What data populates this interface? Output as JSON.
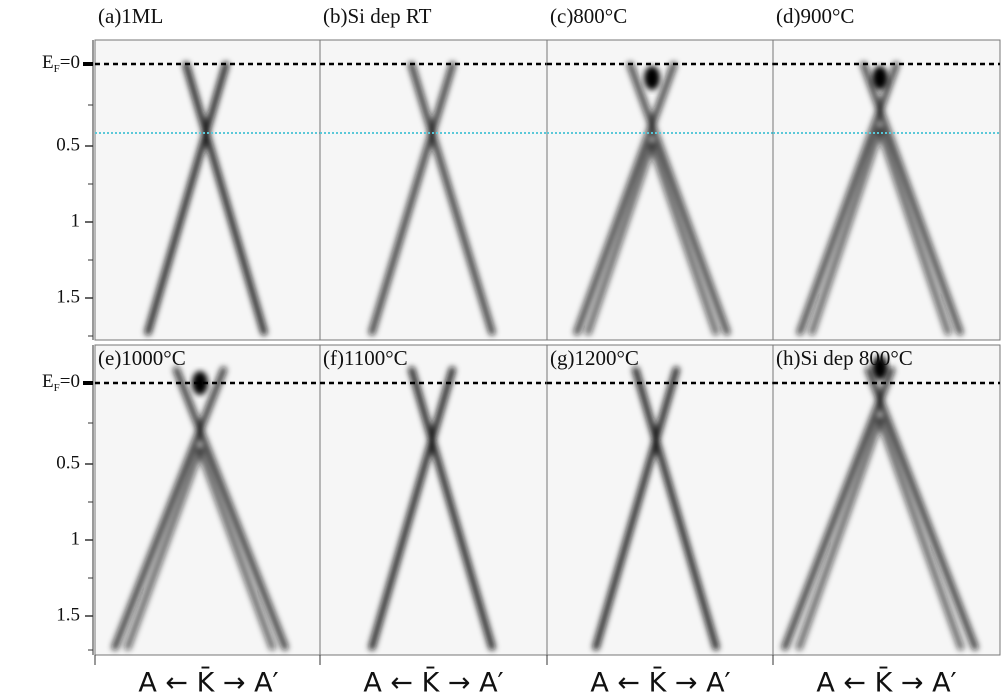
{
  "figure": {
    "panels": [
      {
        "label": "(a)1ML"
      },
      {
        "label": "(b)Si dep RT"
      },
      {
        "label": "(c)800°C"
      },
      {
        "label": "(d)900°C"
      },
      {
        "label": "(e)1000°C"
      },
      {
        "label": "(f)1100°C"
      },
      {
        "label": "(g)1200°C"
      },
      {
        "label": "(h)Si dep 800°C"
      }
    ],
    "y_axis": {
      "fermi_symbol": "E",
      "fermi_subscript": "F",
      "fermi_value": "=0",
      "ticks": [
        "0.5",
        "1",
        "1.5"
      ]
    },
    "x_labels": [
      "A ← K̄ → A′",
      "A ← K̄ → A′",
      "A ← K̄ → A′",
      "A ← K̄ → A′"
    ]
  }
}
